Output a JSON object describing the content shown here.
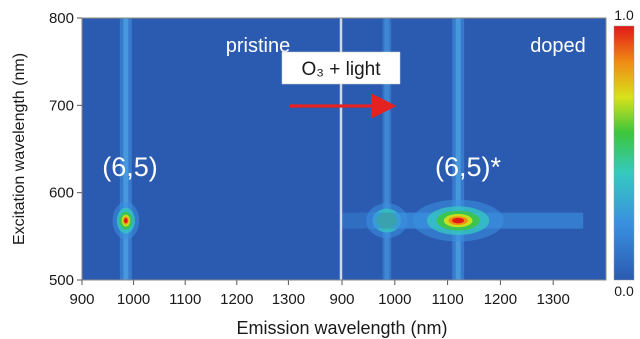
{
  "chart_data": {
    "type": "heatmap",
    "xlabel": "Emission wavelength (nm)",
    "ylabel": "Excitation wavelength (nm)",
    "y_ticks": [
      500,
      600,
      700,
      800
    ],
    "colorbar": {
      "min_label": "0.0",
      "max_label": "1.0",
      "range": [
        0.0,
        1.0
      ]
    },
    "annotation": {
      "text": "O₃ + light"
    },
    "colors": {
      "background": "#2b5bb0",
      "arrow": "#e52222",
      "panel_text": "#ffffff",
      "divider": "#cfd8e8"
    },
    "panels": [
      {
        "name": "pristine",
        "xlim": [
          900,
          1400
        ],
        "ylim": [
          500,
          800
        ],
        "x_ticks": [
          900,
          1000,
          1100,
          1200,
          1300
        ],
        "x_tick_labels": [
          "900",
          "1000",
          "1100",
          "1200",
          "1300"
        ],
        "peak_label": "(6,5)",
        "peaks": [
          {
            "em": 985,
            "ex": 568,
            "intensity": 1.0
          }
        ]
      },
      {
        "name": "doped",
        "xlim": [
          900,
          1400
        ],
        "ylim": [
          500,
          800
        ],
        "x_ticks": [
          900,
          1000,
          1100,
          1200,
          1300
        ],
        "x_tick_labels": [
          "900",
          "1000",
          "1100",
          "1200",
          "1300"
        ],
        "peak_label": "(6,5)*",
        "peaks": [
          {
            "em": 985,
            "ex": 568,
            "intensity": 0.45
          },
          {
            "em": 1120,
            "ex": 568,
            "intensity": 1.0
          }
        ]
      }
    ]
  }
}
